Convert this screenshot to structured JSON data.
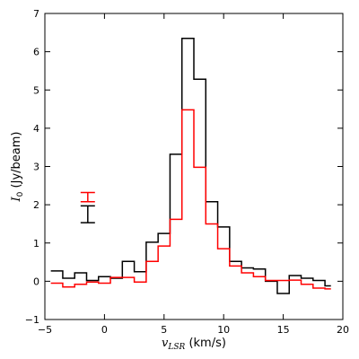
{
  "chart_data": {
    "type": "line",
    "step": true,
    "xlim": [
      -5,
      20
    ],
    "ylim": [
      -1,
      7
    ],
    "xticks": [
      -5,
      0,
      5,
      10,
      15,
      20
    ],
    "yticks": [
      -1,
      0,
      1,
      2,
      3,
      4,
      5,
      6,
      7
    ],
    "xlabel_symbol": "v",
    "xlabel_sub": "LSR",
    "xlabel_unit": " (km/s)",
    "ylabel_symbol": "I",
    "ylabel_sub": "0",
    "ylabel_unit": " (Jy/beam)",
    "bin_edges": [
      -4.5,
      -3.5,
      -2.5,
      -1.5,
      -0.5,
      0.5,
      1.5,
      2.5,
      3.5,
      4.5,
      5.5,
      6.5,
      7.5,
      8.5,
      9.5,
      10.5,
      11.5,
      12.5,
      13.5,
      14.5,
      15.5,
      16.5,
      17.5,
      18.5,
      19.0
    ],
    "series": [
      {
        "color": "#000000",
        "values": [
          0.27,
          0.08,
          0.22,
          0.02,
          0.12,
          0.08,
          0.52,
          0.25,
          1.02,
          1.25,
          3.32,
          6.35,
          5.28,
          2.08,
          1.42,
          0.52,
          0.35,
          0.32,
          0.0,
          -0.32,
          0.15,
          0.08,
          0.02,
          -0.12
        ]
      },
      {
        "color": "#ff0000",
        "values": [
          -0.05,
          -0.15,
          -0.08,
          -0.02,
          -0.05,
          0.1,
          0.1,
          -0.02,
          0.52,
          0.92,
          1.62,
          4.48,
          2.98,
          1.5,
          0.85,
          0.4,
          0.22,
          0.12,
          0.02,
          0.02,
          0.03,
          -0.08,
          -0.18,
          -0.2
        ]
      }
    ],
    "error_bars": [
      {
        "color": "#ff0000",
        "x": -1.4,
        "y": 2.2,
        "err": 0.12
      },
      {
        "color": "#000000",
        "x": -1.4,
        "y": 1.75,
        "err": 0.22
      }
    ]
  }
}
